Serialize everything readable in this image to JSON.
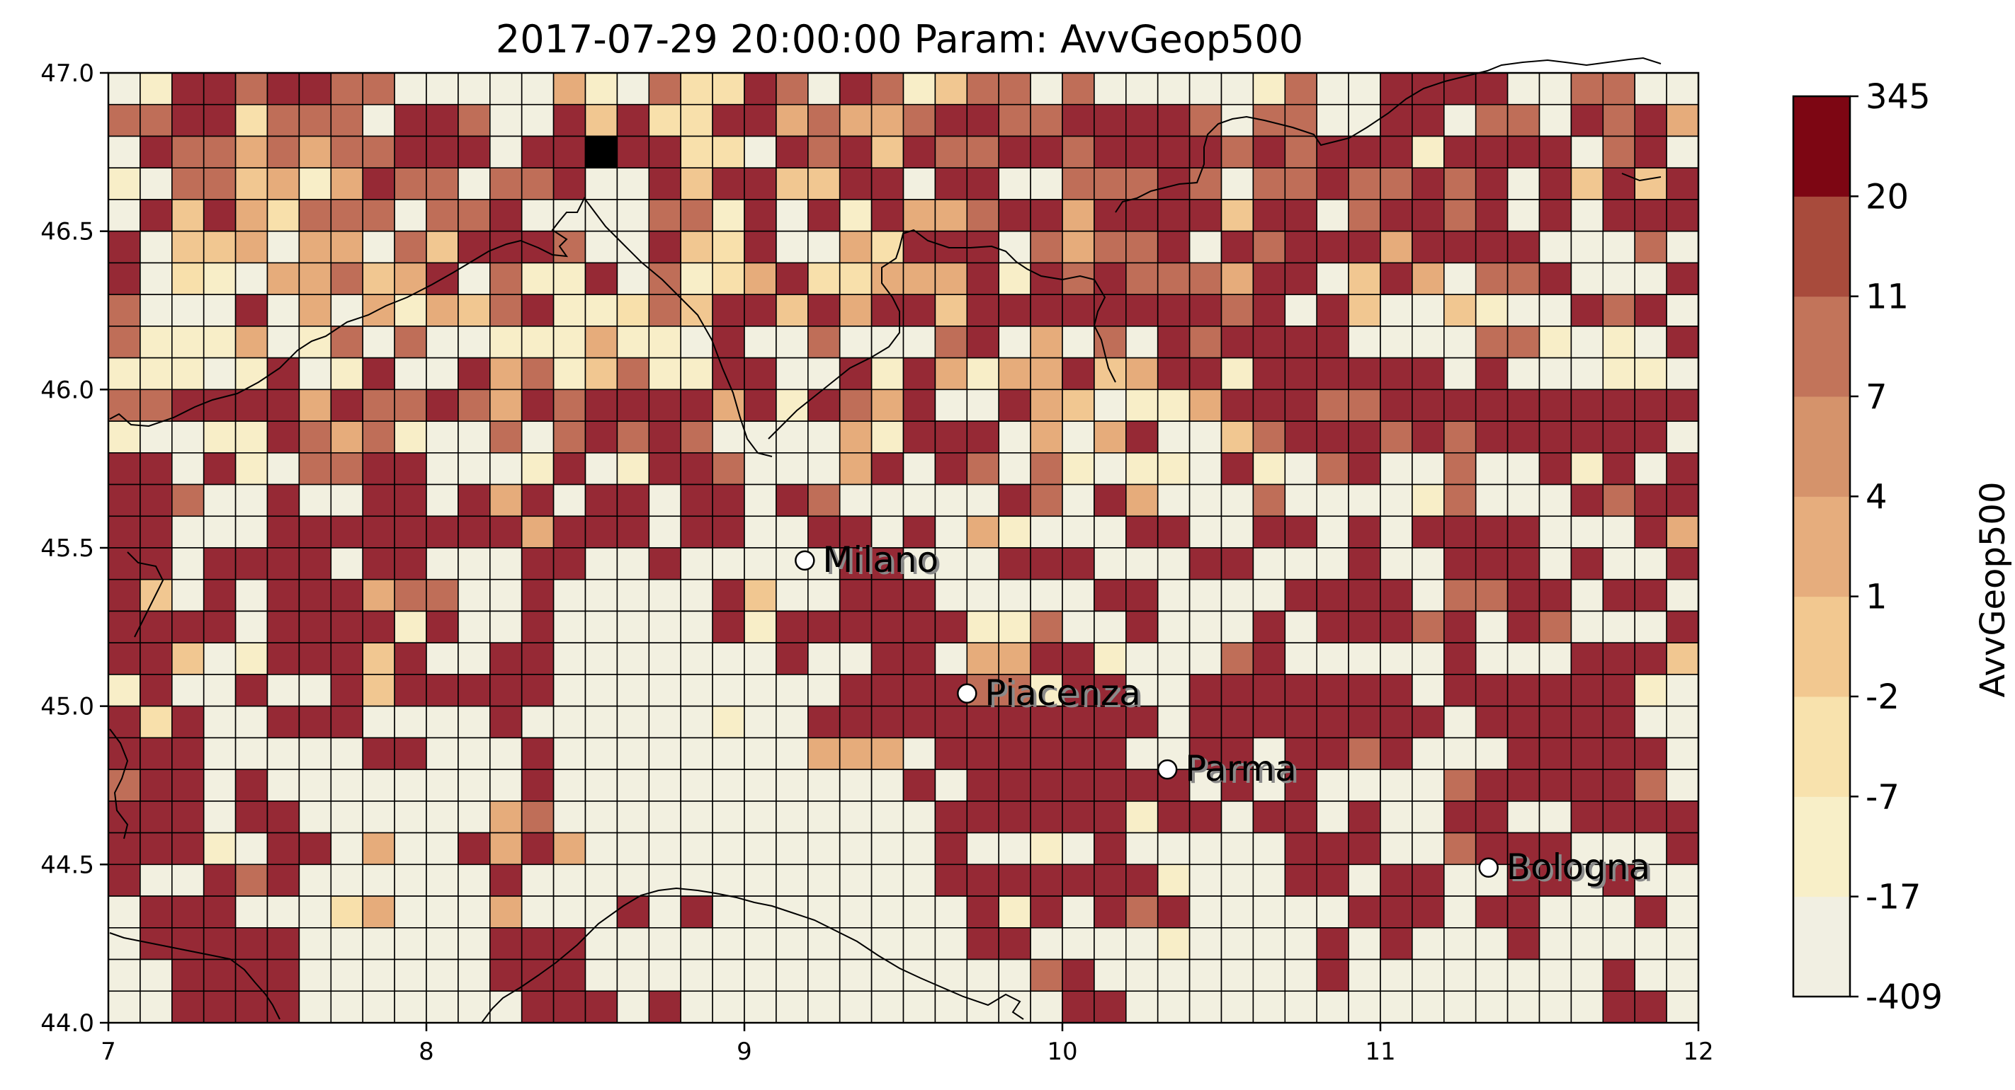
{
  "title": "2017-07-29 20:00:00 Param: AvvGeop500",
  "map": {
    "lon_range": [
      7,
      12
    ],
    "lat_range": [
      44.0,
      47.0
    ],
    "x_ticks": [
      "7",
      "8",
      "9",
      "10",
      "11",
      "12"
    ],
    "y_ticks": [
      "44.0",
      "44.5",
      "45.0",
      "45.5",
      "46.0",
      "46.5",
      "47.0"
    ],
    "grid": {
      "cols": 50,
      "rows": 30,
      "cell_deg": 0.1,
      "cell_border": "#000000"
    },
    "cities": [
      {
        "name": "Milano",
        "lon": 9.19,
        "lat": 45.46
      },
      {
        "name": "Piacenza",
        "lon": 9.7,
        "lat": 45.04
      },
      {
        "name": "Parma",
        "lon": 10.33,
        "lat": 44.8
      },
      {
        "name": "Bologna",
        "lon": 11.34,
        "lat": 44.49
      }
    ],
    "cells": [
      "01665665500000410522650651355050000015006666005500",
      "55662555066500636226645445665566665055006605506564",
      "06554545566606676622065636556656666565666166660560",
      "10553414655055600636633660660055565055655656063636",
      "06364255505560000551606164456646666366056656060666",
      "60334044053666500632600426660545560656664666600050",
      "60210445346051160512462244461656555466036405560006",
      "50006040414356112536636466366666666560630031006560",
      "51114015050011141106005000560405065666600005510106",
      "11101601600645135116600616414463466166666606000110",
      "55666646556546566664616546006430114666556666666666",
      "10011654510050565650000416660404600356665656666660",
      "66061055660001601665000460650510110610560050061606",
      "66500600660646066066065000006506400050000150006566",
      "66000666666664666066006606041000660066060666600064",
      "66066660660006600600000660006660006600060066606006",
      "63060666455006000006300666000006600006666055660660",
      "66660666616006000006166666611500600060666560650006",
      "66301666360066000000060066044661000560000060006663",
      "16006006366666000000000666655166006666666066666610",
      "62600666000060000001006666666666606666666606666600",
      "66600000660006000000004440666666006606656000666660",
      "56606000000006000000000006066666660606000056666650",
      "66606600000045000000000000666666166066060066006666",
      "66610660400646400000000000600106000006660056660006",
      "60065600000060000000000000666666610006606600660600",
      "06660002400040006060000000061606560000066606600060",
      "06666600000066600000000000066000010000606000600000",
      "00666600000066600000000000000560000000600000000600",
      "00666600000006660600000000000066000000000000000660"
    ]
  },
  "colorbar": {
    "label": "AvvGeop500",
    "levels": [
      "-409",
      "-17",
      "-7",
      "-2",
      "1",
      "4",
      "7",
      "11",
      "20",
      "345"
    ],
    "colors": [
      "#f1efe2",
      "#f8efc8",
      "#f8e2ad",
      "#f2c890",
      "#e6ad7d",
      "#d5936b",
      "#c2745a",
      "#a84b3c",
      "#7d0613"
    ],
    "cell_classes": {
      "0": "#f2f0e0",
      "1": "#f8eec8",
      "2": "#f8e0ab",
      "3": "#f1c791",
      "4": "#e6ac7b",
      "5": "#bf6e58",
      "6": "#962935"
    }
  }
}
